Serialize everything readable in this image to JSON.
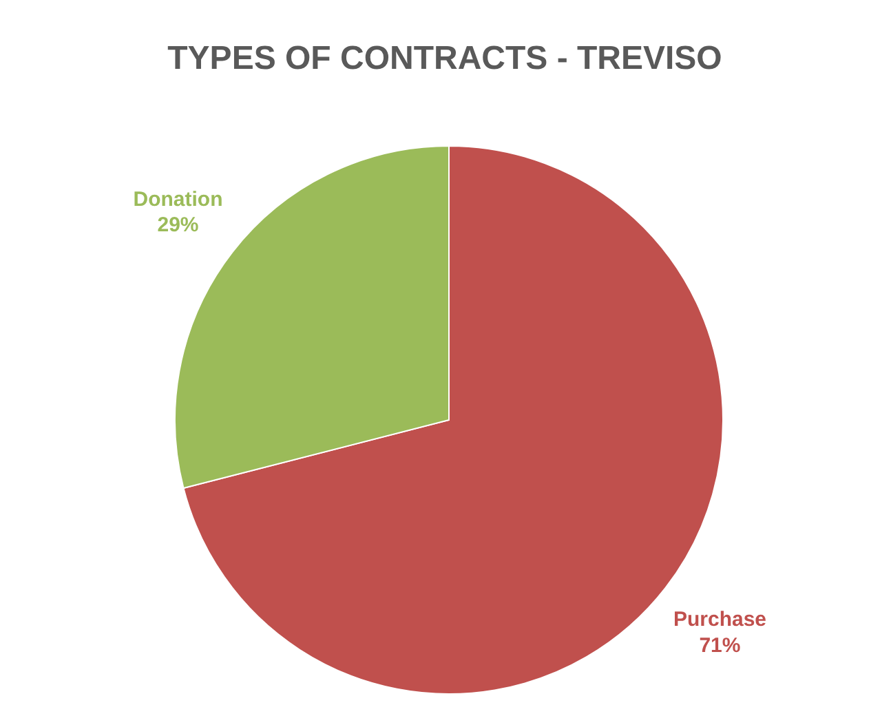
{
  "chart_data": {
    "type": "pie",
    "title": "TYPES OF CONTRACTS - TREVISO",
    "categories": [
      "Purchase",
      "Donation"
    ],
    "values": [
      71,
      29
    ],
    "colors": [
      "#c0504d",
      "#9bbb59"
    ],
    "value_labels": [
      "71%",
      "29%"
    ],
    "legend": false
  }
}
